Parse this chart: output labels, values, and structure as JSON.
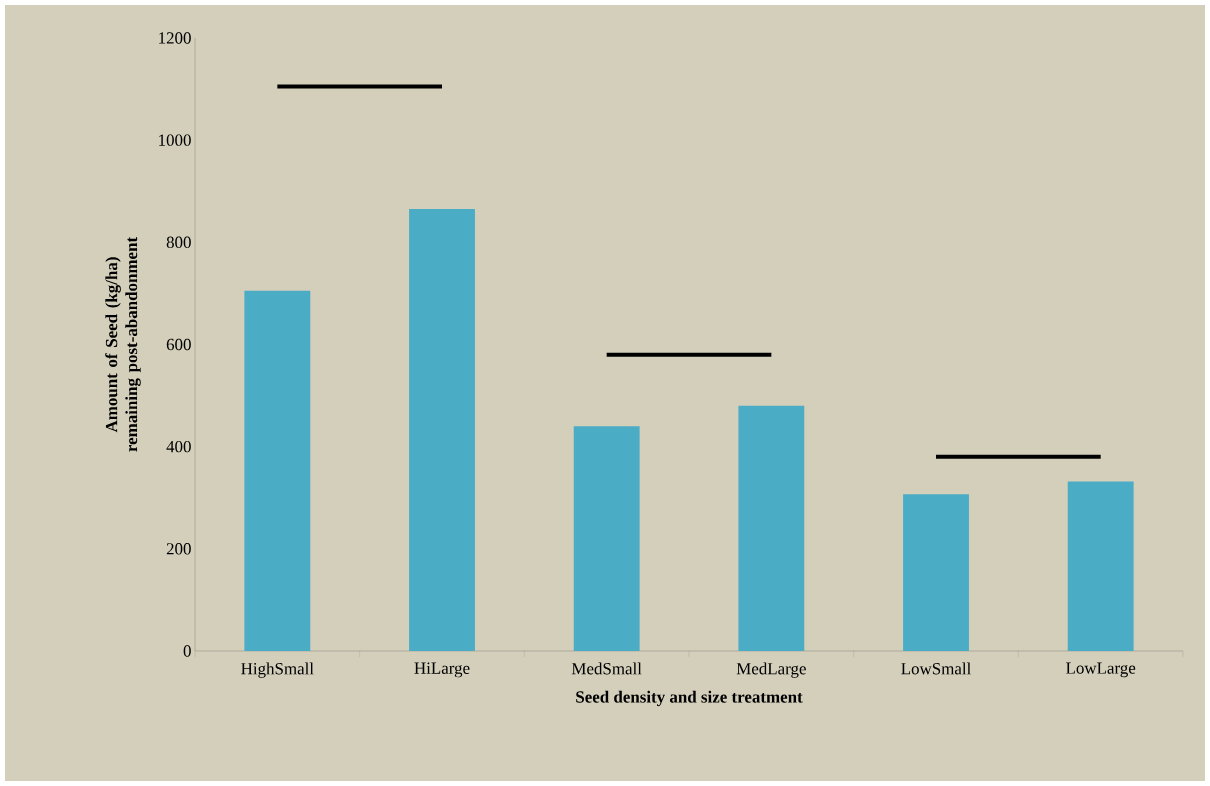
{
  "chart_data": {
    "type": "bar",
    "xlabel": "Seed density and size treatment",
    "ylabel": "Amount of Seed (kg/ha) remaining post-abandonment",
    "categories": [
      "HighSmall",
      "HiLarge",
      "MedSmall",
      "MedLarge",
      "LowSmall",
      "LowLarge"
    ],
    "ylim": [
      0,
      1200
    ],
    "yticks": [
      0,
      200,
      400,
      600,
      800,
      1000,
      1200
    ],
    "grid": false,
    "series": [
      {
        "color": "#4bacc6",
        "values": [
          705,
          865,
          440,
          480,
          307,
          332
        ]
      },
      {
        "type": "line",
        "color": "#000000",
        "marker": "none",
        "line_style": "solid",
        "values": [
          1105,
          1105,
          null,
          null,
          null,
          null
        ]
      },
      {
        "type": "line",
        "color": "#000000",
        "marker": "none",
        "line_style": "solid",
        "values": [
          null,
          null,
          580,
          580,
          null,
          null
        ]
      },
      {
        "type": "line",
        "color": "#000000",
        "marker": "none",
        "line_style": "solid",
        "values": [
          null,
          null,
          null,
          null,
          380,
          380
        ]
      }
    ]
  }
}
